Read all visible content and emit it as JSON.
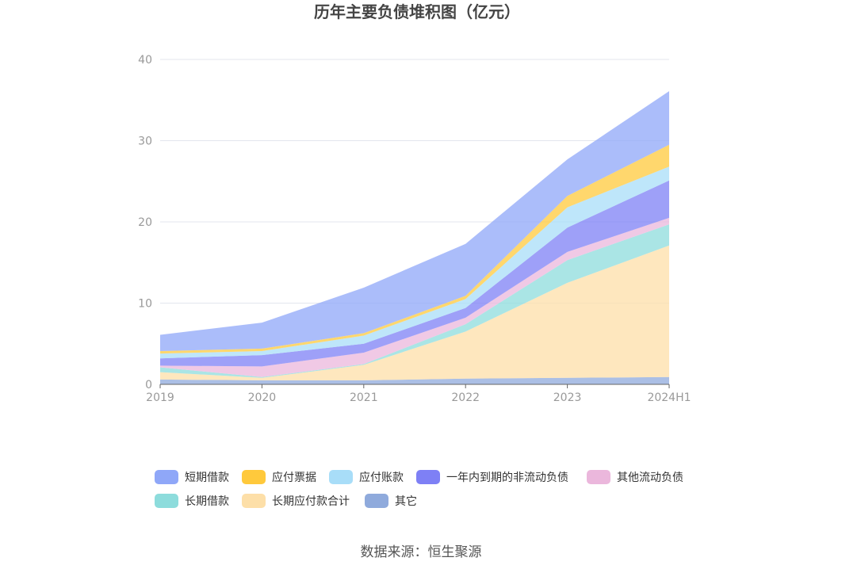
{
  "chart_data": {
    "type": "area",
    "stacked": true,
    "title": "历年主要负债堆积图（亿元）",
    "xlabel": "",
    "ylabel": "",
    "categories": [
      "2019",
      "2020",
      "2021",
      "2022",
      "2023",
      "2024H1"
    ],
    "ylim": [
      0,
      40
    ],
    "yticks": [
      0,
      10,
      20,
      30,
      40
    ],
    "grid": true,
    "legend_position": "bottom",
    "series": [
      {
        "name": "其它",
        "color": "#8FAADC",
        "values": [
          0.6,
          0.5,
          0.5,
          0.7,
          0.8,
          0.9
        ]
      },
      {
        "name": "长期应付款合计",
        "color": "#FDDFA8",
        "values": [
          0.9,
          0.3,
          1.9,
          5.8,
          11.7,
          16.2
        ]
      },
      {
        "name": "长期借款",
        "color": "#8DDCDC",
        "values": [
          0.6,
          0.1,
          0.1,
          0.9,
          2.8,
          2.6
        ]
      },
      {
        "name": "其他流动负债",
        "color": "#EBB7DC",
        "values": [
          0.2,
          1.3,
          1.4,
          0.8,
          1.0,
          0.8
        ]
      },
      {
        "name": "一年内到期的非流动负债",
        "color": "#7E80F5",
        "values": [
          0.9,
          1.4,
          1.1,
          1.2,
          3.0,
          4.6
        ]
      },
      {
        "name": "应付账款",
        "color": "#A8DDF8",
        "values": [
          0.6,
          0.5,
          1.0,
          1.1,
          2.5,
          1.7
        ]
      },
      {
        "name": "应付票据",
        "color": "#FFC93C",
        "values": [
          0.3,
          0.3,
          0.3,
          0.4,
          1.4,
          2.7
        ]
      },
      {
        "name": "短期借款",
        "color": "#8FA7F8",
        "values": [
          2.0,
          3.2,
          5.6,
          6.4,
          4.5,
          6.6
        ]
      }
    ],
    "legend_order": [
      "短期借款",
      "应付票据",
      "应付账款",
      "一年内到期的非流动负债",
      "其他流动负债",
      "长期借款",
      "长期应付款合计",
      "其它"
    ]
  },
  "source": "数据来源：恒生聚源"
}
